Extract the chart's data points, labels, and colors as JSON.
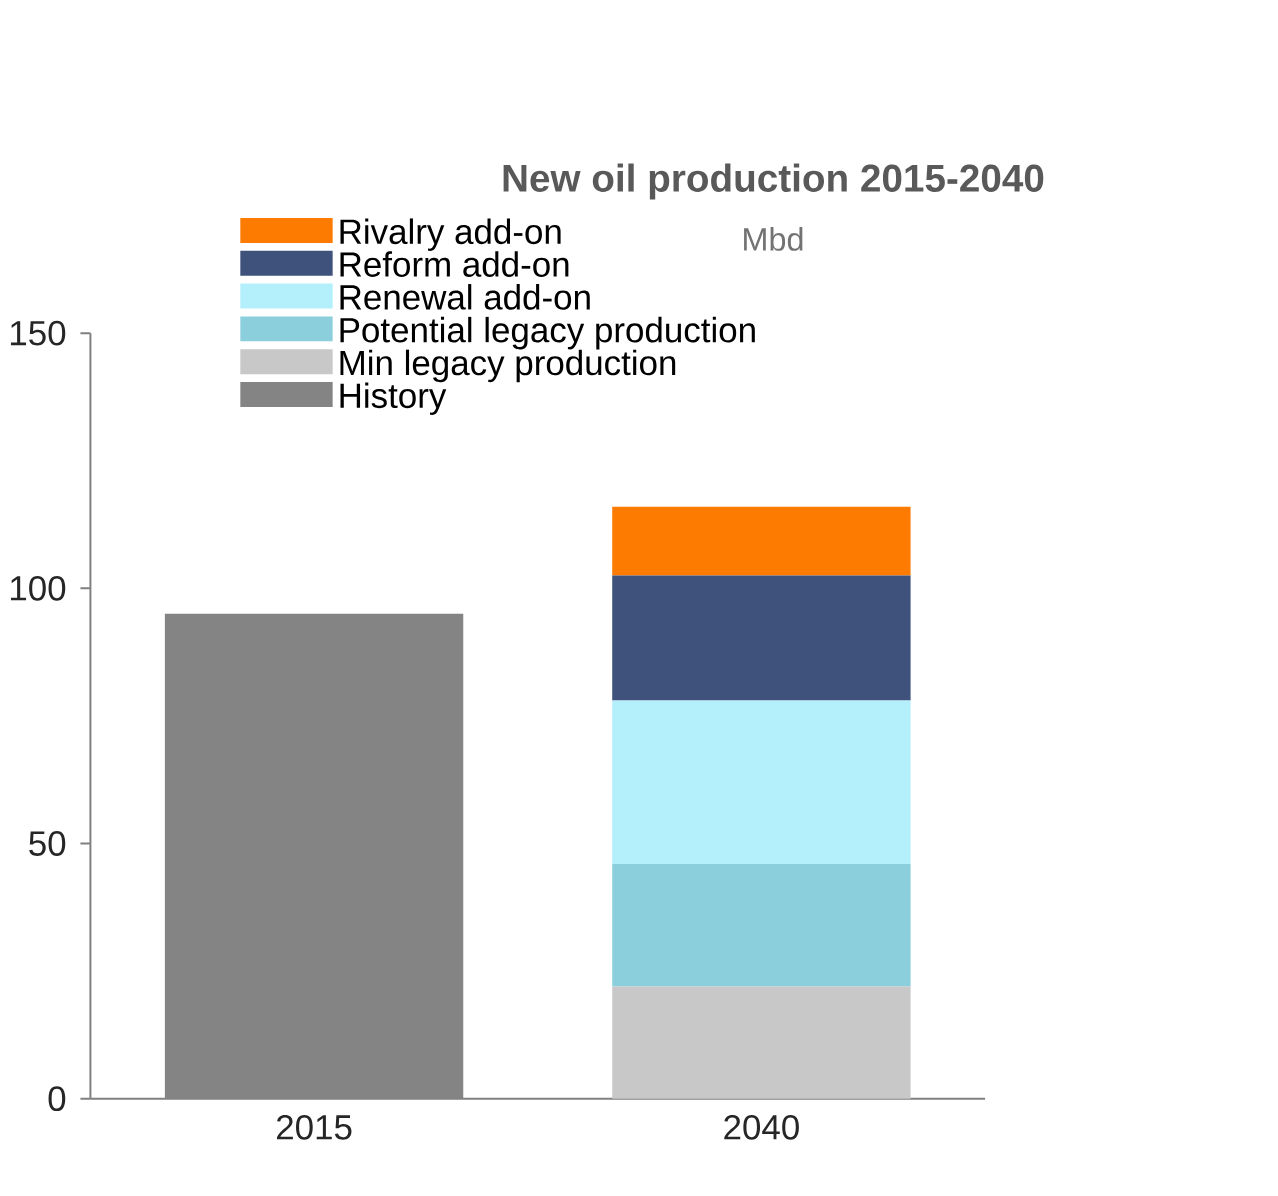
{
  "chart_data": {
    "type": "bar",
    "stacked": true,
    "title": "New oil production 2015-2040",
    "subtitle": "Mbd",
    "categories": [
      "2015",
      "2040"
    ],
    "series": [
      {
        "name": "History",
        "color": "#848484",
        "values": [
          95,
          null
        ]
      },
      {
        "name": "Min legacy production",
        "color": "#c8c8c8",
        "values": [
          null,
          22
        ]
      },
      {
        "name": "Potential legacy production",
        "color": "#8ccfdc",
        "values": [
          null,
          24
        ]
      },
      {
        "name": "Renewal add-on",
        "color": "#b3f0fb",
        "values": [
          null,
          32
        ]
      },
      {
        "name": "Reform add-on",
        "color": "#3f527c",
        "values": [
          null,
          24.5
        ]
      },
      {
        "name": "Rivalry add-on",
        "color": "#fd7b00",
        "values": [
          null,
          13.5
        ]
      }
    ],
    "ylim": [
      0,
      150
    ],
    "yticks": [
      0,
      50,
      100,
      150
    ],
    "legend": "top"
  }
}
